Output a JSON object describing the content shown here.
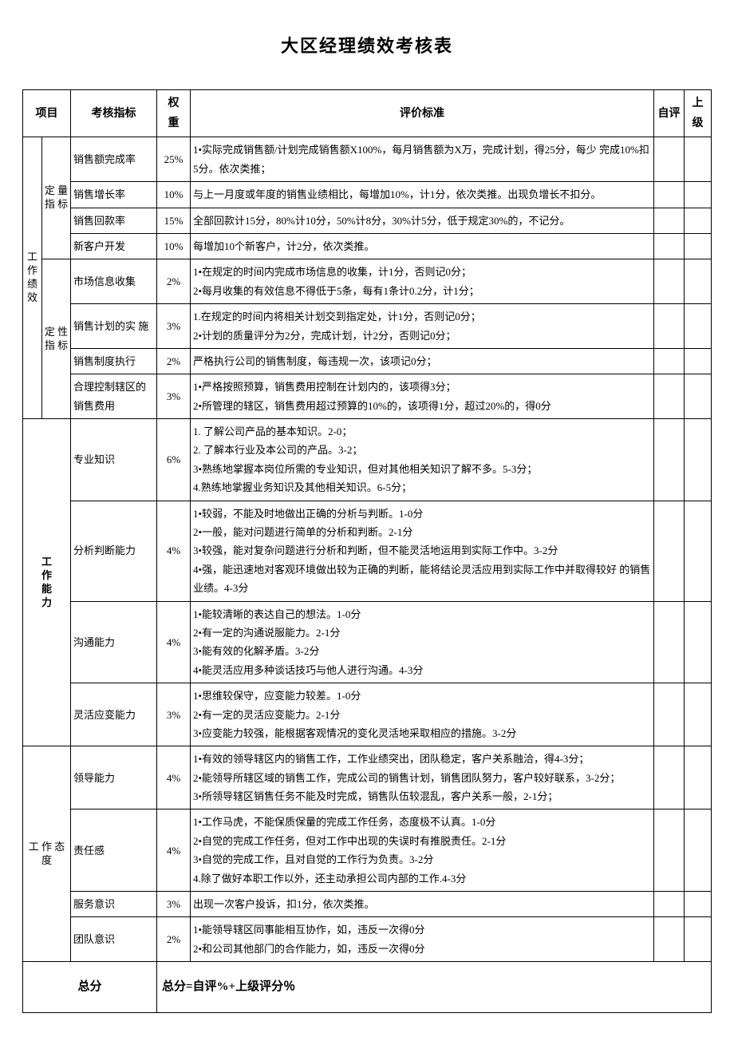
{
  "title": "大区经理绩效考核表",
  "headers": {
    "project": "项目",
    "indicator": "考核指标",
    "weight_l1": "权",
    "weight_l2": "重",
    "criteria": "评价标准",
    "self": "自评",
    "sup_l1": "上",
    "sup_l2": "级"
  },
  "cat": {
    "work_perf": "工作绩效",
    "quant": "定 量指 标",
    "qual": "定 性指 标",
    "work_ability": "工作能力",
    "work_attitude": "工 作 态度",
    "total": "总分"
  },
  "rows": {
    "r1": {
      "ind": "销售额完成率",
      "w": "25%",
      "c": " 1•实际完成销售额/计划完成销售额X100%，每月销售额为X万，完成计划，得25分，每少 完成10%扣5分。依次类推；"
    },
    "r2": {
      "ind": "销售增长率",
      "w": "10%",
      "c": "与上一月度或年度的销售业绩相比，每增加10%，计1分，依次类推。出现负增长不扣分。"
    },
    "r3": {
      "ind": "销售回款率",
      "w": "15%",
      "c": "全部回款计15分，80%计10分，50%计8分，30%计5分，低于规定30%的，不记分。"
    },
    "r4": {
      "ind": "新客户开发",
      "w": "10%",
      "c": "每增加10个新客户，计2分，依次类推。"
    },
    "r5": {
      "ind": "市场信息收集",
      "w": "2%",
      "c1": "1•在规定的时间内完成市场信息的收集，计1分，否则记0分；",
      "c2": "2•每月收集的有效信息不得低于5条，每有1条计0.2分，计1分；"
    },
    "r6": {
      "ind": "销售计划的实 施",
      "w": "3%",
      "c1": "1.在规定的时间内将相关计划交到指定处，计1分，否则记0分；",
      "c2": "2•计划的质量评分为2分，完成计划，计2分，否则记0分；"
    },
    "r7": {
      "ind": "销售制度执行",
      "w": "2%",
      "c": "严格执行公司的销售制度，每违规一次，该项记0分；"
    },
    "r8": {
      "ind": "合理控制辖区的销售费用",
      "w": "3%",
      "c1": "1•严格按照预算，销售费用控制在计划内的，该项得3分；",
      "c2": "2•所管理的辖区，销售费用超过预算的10%的，该项得1分，超过20%的，得0分"
    },
    "r9": {
      "ind": "专业知识",
      "w": "6%",
      "c1": "1. 了解公司产品的基本知识。2-0；",
      "c2": "2. 了解本行业及本公司的产品。3-2；",
      "c3": "3•熟练地掌握本岗位所需的专业知识，但对其他相关知识了解不多。5-3分；",
      "c4": "4.熟练地掌握业务知识及其他相关知识。6-5分；"
    },
    "r10": {
      "ind": "分析判断能力",
      "w": "4%",
      "c1": "1•较弱，不能及时地做出正确的分析与判断。1-0分",
      "c2": "2•一般，能对问题进行简单的分析和判断。2-1分",
      "c3": "3•较强，能对复杂问题进行分析和判断，但不能灵活地运用到实际工作中。3-2分",
      "c4": " 4•强，能迅速地对客观环境做出较为正确的判断，能将结论灵活应用到实际工作中并取得较好 的销售业绩。4-3分"
    },
    "r11": {
      "ind": "沟通能力",
      "w": "4%",
      "c1": "1•能较清晰的表达自己的想法。1-0分",
      "c2": "2•有一定的沟通说服能力。2-1分",
      "c3": "3•能有效的化解矛盾。3-2分",
      "c4": "4•能灵活应用多种谈话技巧与他人进行沟通。4-3分"
    },
    "r12": {
      "ind": "灵活应变能力",
      "w": "3%",
      "c1": "1•思维较保守，应变能力较差。1-0分",
      "c2": "2•有一定的灵活应变能力。2-1分",
      "c3": "3•应变能力较强，能根据客观情况的变化灵活地采取相应的措施。3-2分"
    },
    "r13": {
      "ind": "领导能力",
      "w": "4%",
      "c1": "1•有效的领导辖区内的销售工作，工作业绩突出，团队稳定，客户关系融洽，得4-3分；",
      "c2": "2•能领导所辖区域的销售工作，完成公司的销售计划，销售团队努力，客户较好联系，3-2分；",
      "c3": "3•所领导辖区销售任务不能及时完成，销售队伍较混乱，客户关系一般，2-1分；"
    },
    "r14": {
      "ind": "责任感",
      "w": "4%",
      "c1": "1•工作马虎，不能保质保量的完成工作任务，态度极不认真。1-0分",
      "c2": "2•自觉的完成工作任务，但对工作中出现的失误时有推脱责任。2-1分",
      "c3": "3•自觉的完成工作，且对自觉的工作行为负责。3-2分",
      "c4": "4.除了做好本职工作以外，还主动承担公司内部的工作.4-3分"
    },
    "r15": {
      "ind": "服务意识",
      "w": "3%",
      "c": "出现一次客户投诉，扣1分，依次类推。"
    },
    "r16": {
      "ind": "团队意识",
      "w": "2%",
      "c1": "1•能领导辖区同事能相互协作，如，违反一次得0分",
      "c2": "2•和公司其他部门的合作能力，如，违反一次得0分"
    }
  },
  "total_formula": "总分=自评%+上级评分％"
}
